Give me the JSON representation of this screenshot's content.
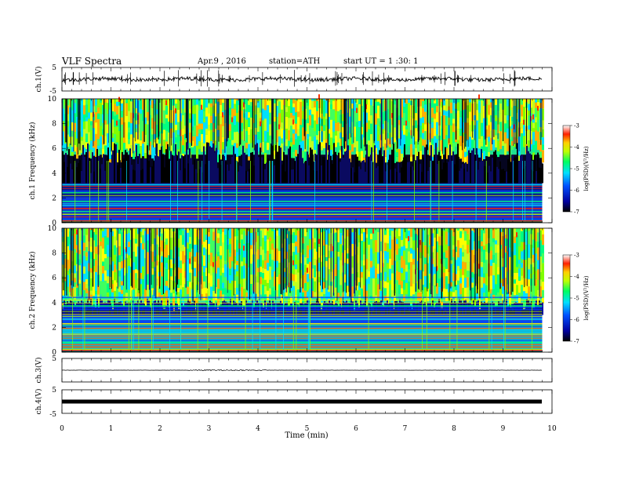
{
  "header": {
    "title": "VLF Spectra",
    "date": "Apr.9 , 2016",
    "station": "station=ATH",
    "start": "start UT =  1 :30: 1"
  },
  "colors": {
    "colormap": [
      "#000000",
      "#0a0a80",
      "#0000ff",
      "#00c8ff",
      "#00ff80",
      "#80ff00",
      "#ffff00",
      "#ff8000",
      "#ff0000",
      "#ffffff"
    ],
    "trace": "#000000"
  },
  "chart_data": [
    {
      "type": "line",
      "name": "ch.1 waveform",
      "ylabel": "ch.1(V)",
      "ylim": [
        -5,
        5
      ],
      "yticks": [
        "5",
        "-5"
      ],
      "xlim": [
        0,
        10
      ],
      "baseline": 0,
      "data_end": 9.8
    },
    {
      "type": "heatmap",
      "name": "ch.1 spectrogram",
      "ylabel": "ch.1 Frequency (kHz)",
      "ylim": [
        0,
        10
      ],
      "yticks": [
        "10",
        "8",
        "6",
        "4",
        "2",
        "0"
      ],
      "xlim": [
        0,
        10
      ],
      "data_end": 9.8,
      "colorbar": {
        "label": "log(PSD)(V²/Hz)",
        "range": [
          -7,
          -3
        ],
        "ticks": [
          "-3",
          "-4",
          "-5",
          "-6",
          "-7"
        ]
      },
      "bands": [
        {
          "from": 0.0,
          "to": 2.0,
          "level": "banded blue/cyan with green lines"
        },
        {
          "from": 2.0,
          "to": 3.2,
          "level": "dark blue"
        },
        {
          "from": 3.2,
          "to": 5.5,
          "level": "black/very low"
        },
        {
          "from": 5.5,
          "to": 10.0,
          "level": "green/yellow with red spots"
        }
      ]
    },
    {
      "type": "heatmap",
      "name": "ch.2 spectrogram",
      "ylabel": "ch.2 Frequency (kHz)",
      "ylim": [
        0,
        10
      ],
      "yticks": [
        "10",
        "8",
        "6",
        "4",
        "2",
        "0"
      ],
      "xlim": [
        0,
        10
      ],
      "data_end": 9.8,
      "colorbar": {
        "label": "log(PSD)(V²/Hz)",
        "range": [
          -7,
          -3
        ],
        "ticks": [
          "-3",
          "-4",
          "-5",
          "-6",
          "-7"
        ]
      },
      "bands": [
        {
          "from": 0.0,
          "to": 2.0,
          "level": "banded cyan/green with yellow lines"
        },
        {
          "from": 2.0,
          "to": 3.0,
          "level": "blue/cyan"
        },
        {
          "from": 3.0,
          "to": 4.0,
          "level": "dark blue"
        },
        {
          "from": 4.0,
          "to": 10.0,
          "level": "green/yellow with red spots"
        }
      ]
    },
    {
      "type": "line",
      "name": "ch.3 waveform",
      "ylabel": "ch.3(V)",
      "ylim": [
        -5,
        5
      ],
      "yticks": [
        "5",
        "-5"
      ],
      "xlim": [
        0,
        10
      ],
      "baseline": 0,
      "data_end": 9.8
    },
    {
      "type": "line",
      "name": "ch.4 waveform",
      "ylabel": "ch.4(V)",
      "ylim": [
        -5,
        5
      ],
      "yticks": [
        "5",
        "-5"
      ],
      "xlim": [
        0,
        10
      ],
      "baseline": 0,
      "data_end": 9.8
    }
  ],
  "x_axis": {
    "label": "Time (min)",
    "ticks": [
      "0",
      "1",
      "2",
      "3",
      "4",
      "5",
      "6",
      "7",
      "8",
      "9",
      "10"
    ]
  }
}
